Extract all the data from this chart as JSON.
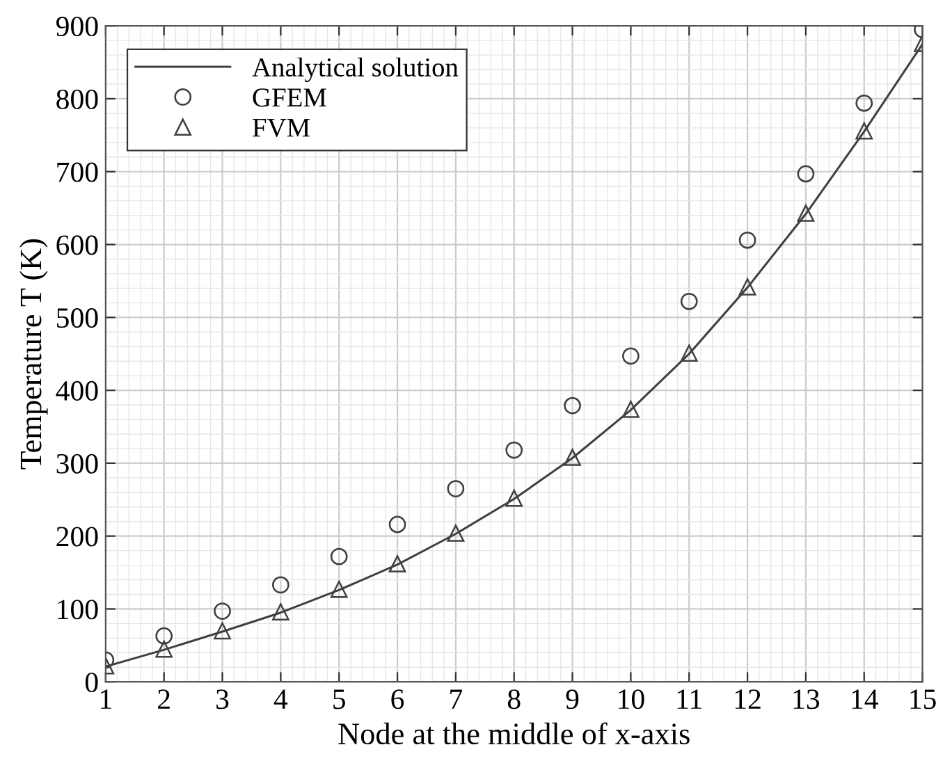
{
  "chart_data": {
    "type": "line",
    "xlabel": "Node at the middle of x-axis",
    "ylabel": "Temperature T (K)",
    "x": [
      1,
      2,
      3,
      4,
      5,
      6,
      7,
      8,
      9,
      10,
      11,
      12,
      13,
      14,
      15
    ],
    "series": [
      {
        "name": "Analytical solution",
        "color": "#404040",
        "marker": "none",
        "line_style": "solid",
        "values": [
          21,
          44,
          69,
          95,
          126,
          161,
          203,
          251,
          307,
          373,
          450,
          541,
          642,
          755,
          875
        ]
      },
      {
        "name": "GFEM",
        "type": "scatter",
        "color": "#404040",
        "marker": "circle",
        "values": [
          30,
          63,
          97,
          133,
          172,
          216,
          265,
          318,
          379,
          447,
          522,
          606,
          697,
          794,
          895
        ]
      },
      {
        "name": "FVM",
        "type": "scatter",
        "color": "#404040",
        "marker": "triangle",
        "values": [
          22,
          45,
          70,
          96,
          127,
          162,
          204,
          252,
          308,
          374,
          451,
          542,
          643,
          756,
          876
        ]
      }
    ],
    "xlim": [
      1,
      15
    ],
    "xticks": [
      1,
      2,
      3,
      4,
      5,
      6,
      7,
      8,
      9,
      10,
      11,
      12,
      13,
      14,
      15
    ],
    "ylim": [
      0,
      900
    ],
    "yticks": [
      0,
      100,
      200,
      300,
      400,
      500,
      600,
      700,
      800,
      900
    ],
    "grid": true,
    "legend": "top left"
  }
}
